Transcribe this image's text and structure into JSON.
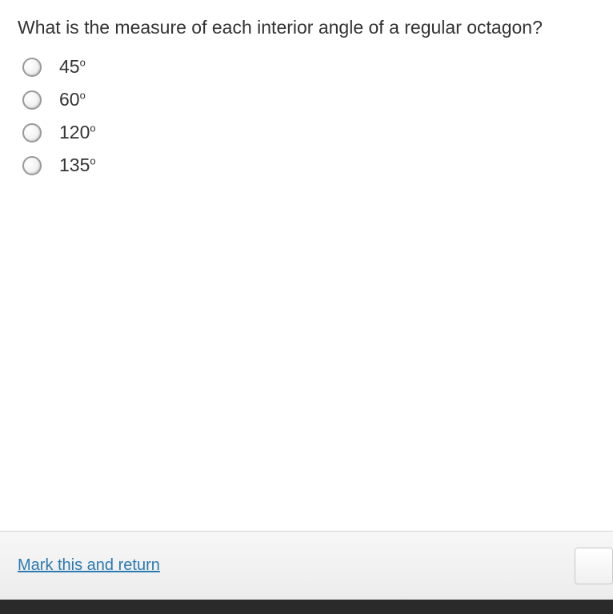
{
  "question": {
    "text": "What is the measure of each interior angle of a regular octagon?",
    "options": [
      {
        "value": "45",
        "unit": "o"
      },
      {
        "value": "60",
        "unit": "o"
      },
      {
        "value": "120",
        "unit": "o"
      },
      {
        "value": "135",
        "unit": "o"
      }
    ]
  },
  "footer": {
    "mark_return_label": "Mark this and return"
  },
  "colors": {
    "text": "#333333",
    "link": "#2a7ab0",
    "footer_bg_top": "#f7f7f7",
    "footer_bg_bottom": "#ececec",
    "bottom_strip": "#2a2a2a"
  }
}
